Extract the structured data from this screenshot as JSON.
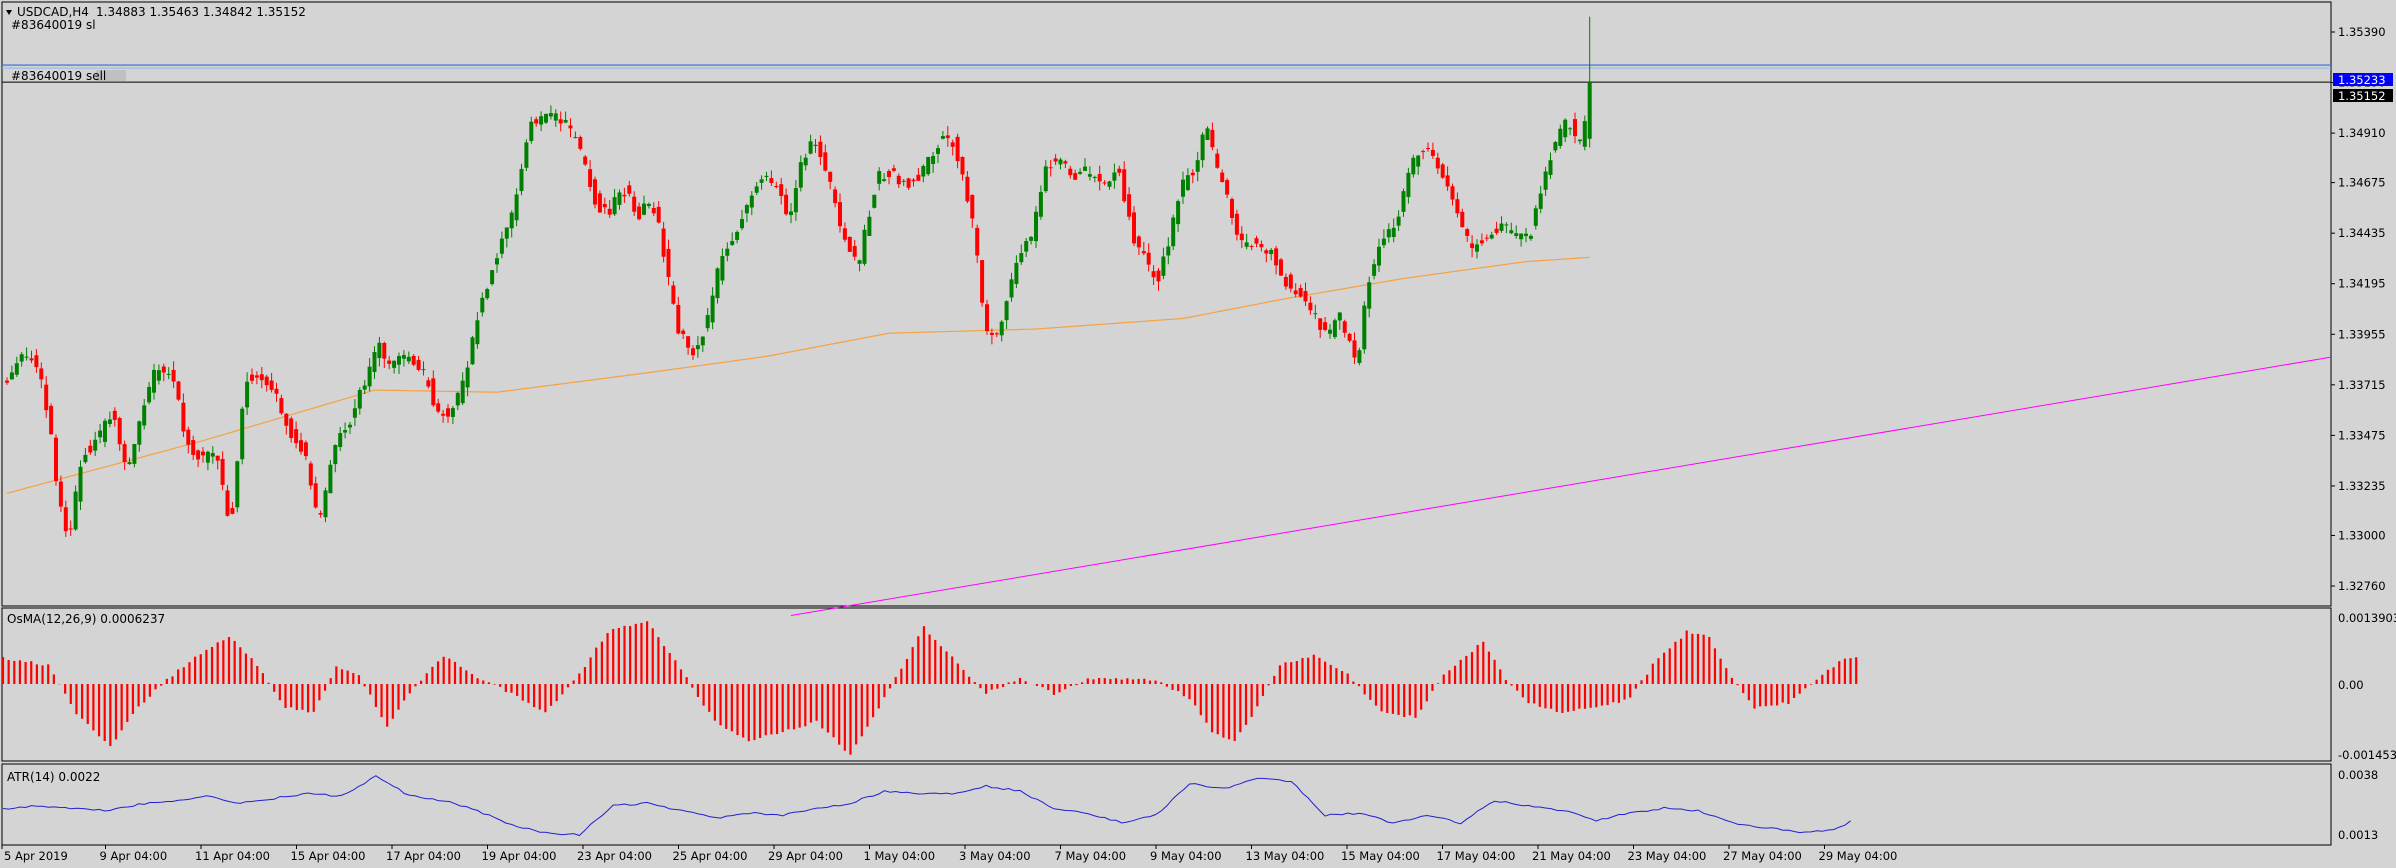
{
  "header": {
    "symbol_label": "USDCAD,H4",
    "ohlc": "1.34883 1.35463 1.34842 1.35152"
  },
  "orders": {
    "sl_label": "#83640019 sl",
    "sell_label": "#83640019 sell"
  },
  "price_tags": {
    "entry": "1.35233",
    "current": "1.35152"
  },
  "indicators": {
    "osma_title": "OsMA(12,26,9) 0.0006237",
    "osma_axis": [
      "0.0013903",
      "0.00",
      "-0.001453"
    ],
    "atr_title": "ATR(14) 0.0022",
    "atr_axis": [
      "0.0038",
      "0.0013"
    ]
  },
  "colors": {
    "bull": "#008000",
    "bear": "#ff0000",
    "ma": "#f5a142",
    "trend": "#ff00ff",
    "sl_line": "#ff0000",
    "entry_line": "#4a7fe0",
    "atr": "#2020d0",
    "osma": "#ff0000"
  },
  "chart_data": {
    "type": "candlestick",
    "price_ticks": [
      "1.35390",
      "1.35150",
      "1.34910",
      "1.34675",
      "1.34435",
      "1.34195",
      "1.33955",
      "1.33715",
      "1.33475",
      "1.33235",
      "1.33000",
      "1.32760"
    ],
    "x_ticks": [
      "5 Apr 2019",
      "9 Apr 04:00",
      "11 Apr 04:00",
      "15 Apr 04:00",
      "17 Apr 04:00",
      "19 Apr 04:00",
      "23 Apr 04:00",
      "25 Apr 04:00",
      "29 Apr 04:00",
      "1 May 04:00",
      "3 May 04:00",
      "7 May 04:00",
      "9 May 04:00",
      "13 May 04:00",
      "15 May 04:00",
      "17 May 04:00",
      "21 May 04:00",
      "23 May 04:00",
      "27 May 04:00",
      "29 May 04:00"
    ],
    "levels": {
      "stop_loss": 1.35545,
      "entry": 1.35233,
      "current": 1.35152
    },
    "price_anchors": [
      [
        0,
        1.3374
      ],
      [
        3,
        1.3385
      ],
      [
        6,
        1.3385
      ],
      [
        9,
        1.3356
      ],
      [
        11,
        1.3315
      ],
      [
        13,
        1.33
      ],
      [
        16,
        1.334
      ],
      [
        19,
        1.3345
      ],
      [
        22,
        1.336
      ],
      [
        25,
        1.3328
      ],
      [
        28,
        1.336
      ],
      [
        31,
        1.338
      ],
      [
        34,
        1.3378
      ],
      [
        37,
        1.3345
      ],
      [
        40,
        1.3335
      ],
      [
        43,
        1.334
      ],
      [
        46,
        1.3303
      ],
      [
        49,
        1.3375
      ],
      [
        52,
        1.3375
      ],
      [
        55,
        1.337
      ],
      [
        58,
        1.335
      ],
      [
        61,
        1.334
      ],
      [
        64,
        1.3305
      ],
      [
        67,
        1.334
      ],
      [
        70,
        1.3353
      ],
      [
        73,
        1.337
      ],
      [
        76,
        1.339
      ],
      [
        79,
        1.338
      ],
      [
        82,
        1.3385
      ],
      [
        84,
        1.338
      ],
      [
        86,
        1.3375
      ],
      [
        88,
        1.336
      ],
      [
        91,
        1.3357
      ],
      [
        94,
        1.3375
      ],
      [
        97,
        1.341
      ],
      [
        100,
        1.343
      ],
      [
        103,
        1.3447
      ],
      [
        105,
        1.347
      ],
      [
        107,
        1.3495
      ],
      [
        109,
        1.3497
      ],
      [
        112,
        1.35
      ],
      [
        115,
        1.3493
      ],
      [
        117,
        1.3484
      ],
      [
        119,
        1.347
      ],
      [
        121,
        1.3455
      ],
      [
        123,
        1.3452
      ],
      [
        125,
        1.346
      ],
      [
        127,
        1.3465
      ],
      [
        129,
        1.345
      ],
      [
        131,
        1.346
      ],
      [
        133,
        1.3452
      ],
      [
        135,
        1.3425
      ],
      [
        137,
        1.34
      ],
      [
        139,
        1.339
      ],
      [
        141,
        1.3385
      ],
      [
        143,
        1.34
      ],
      [
        146,
        1.343
      ],
      [
        149,
        1.3445
      ],
      [
        152,
        1.346
      ],
      [
        155,
        1.347
      ],
      [
        158,
        1.3465
      ],
      [
        160,
        1.345
      ],
      [
        162,
        1.3475
      ],
      [
        165,
        1.349
      ],
      [
        168,
        1.347
      ],
      [
        170,
        1.345
      ],
      [
        172,
        1.344
      ],
      [
        174,
        1.3425
      ],
      [
        176,
        1.345
      ],
      [
        178,
        1.347
      ],
      [
        181,
        1.3472
      ],
      [
        184,
        1.3466
      ],
      [
        187,
        1.3472
      ],
      [
        190,
        1.3485
      ],
      [
        193,
        1.349
      ],
      [
        196,
        1.3465
      ],
      [
        198,
        1.344
      ],
      [
        200,
        1.34
      ],
      [
        202,
        1.339
      ],
      [
        205,
        1.342
      ],
      [
        208,
        1.3435
      ],
      [
        210,
        1.3445
      ],
      [
        212,
        1.3475
      ],
      [
        215,
        1.348
      ],
      [
        218,
        1.347
      ],
      [
        221,
        1.3473
      ],
      [
        224,
        1.3465
      ],
      [
        227,
        1.3475
      ],
      [
        229,
        1.3455
      ],
      [
        231,
        1.3435
      ],
      [
        233,
        1.343
      ],
      [
        235,
        1.342
      ],
      [
        237,
        1.3435
      ],
      [
        240,
        1.3465
      ],
      [
        243,
        1.3475
      ],
      [
        245,
        1.3497
      ],
      [
        247,
        1.3475
      ],
      [
        249,
        1.3465
      ],
      [
        252,
        1.3438
      ],
      [
        255,
        1.344
      ],
      [
        258,
        1.3435
      ],
      [
        261,
        1.3422
      ],
      [
        264,
        1.3415
      ],
      [
        267,
        1.3405
      ],
      [
        270,
        1.3393
      ],
      [
        272,
        1.3405
      ],
      [
        274,
        1.3395
      ],
      [
        276,
        1.338
      ],
      [
        278,
        1.342
      ],
      [
        281,
        1.344
      ],
      [
        284,
        1.345
      ],
      [
        287,
        1.3475
      ],
      [
        290,
        1.3485
      ],
      [
        293,
        1.3472
      ],
      [
        296,
        1.3455
      ],
      [
        299,
        1.3437
      ],
      [
        302,
        1.344
      ],
      [
        305,
        1.3447
      ],
      [
        308,
        1.3442
      ],
      [
        311,
        1.344
      ],
      [
        313,
        1.346
      ],
      [
        316,
        1.3485
      ],
      [
        319,
        1.3497
      ],
      [
        321,
        1.3486
      ],
      [
        322,
        1.3488
      ],
      [
        323,
        1.3515
      ]
    ],
    "ma_anchors": [
      [
        0,
        1.332
      ],
      [
        40,
        1.3345
      ],
      [
        75,
        1.3369
      ],
      [
        100,
        1.3368
      ],
      [
        130,
        1.3377
      ],
      [
        155,
        1.3385
      ],
      [
        180,
        1.3396
      ],
      [
        210,
        1.3398
      ],
      [
        240,
        1.3403
      ],
      [
        260,
        1.3412
      ],
      [
        285,
        1.3422
      ],
      [
        310,
        1.343
      ],
      [
        323,
        1.3432
      ]
    ],
    "trendline": {
      "x0": 160,
      "y0": 1.3262,
      "x1": 406,
      "y1": 1.3358
    },
    "osma_anchors": [
      [
        0,
        0.00055
      ],
      [
        8,
        0.0004
      ],
      [
        13,
        -0.00065
      ],
      [
        19,
        -0.0013
      ],
      [
        24,
        -0.0005
      ],
      [
        29,
        0.0001
      ],
      [
        34,
        0.00055
      ],
      [
        40,
        0.001
      ],
      [
        45,
        0.0004
      ],
      [
        50,
        -0.0005
      ],
      [
        55,
        -0.0006
      ],
      [
        59,
        0.00035
      ],
      [
        63,
        0.0002
      ],
      [
        68,
        -0.0009
      ],
      [
        72,
        -0.0002
      ],
      [
        78,
        0.0006
      ],
      [
        84,
        0.00015
      ],
      [
        90,
        -0.0002
      ],
      [
        96,
        -0.0006
      ],
      [
        102,
        0.0002
      ],
      [
        107,
        0.0011
      ],
      [
        114,
        0.00135
      ],
      [
        120,
        0.0003
      ],
      [
        126,
        -0.0008
      ],
      [
        132,
        -0.0012
      ],
      [
        138,
        -0.001
      ],
      [
        144,
        -0.0008
      ],
      [
        150,
        -0.0015
      ],
      [
        156,
        -0.0003
      ],
      [
        163,
        0.0012
      ],
      [
        170,
        0.0003
      ],
      [
        174,
        -0.0002
      ],
      [
        180,
        0.00012
      ],
      [
        186,
        -0.0002
      ],
      [
        192,
        0.0001
      ],
      [
        198,
        0.0001
      ],
      [
        204,
        0.0001
      ],
      [
        210,
        -0.0003
      ],
      [
        214,
        -0.001
      ],
      [
        218,
        -0.0012
      ],
      [
        222,
        -0.0005
      ],
      [
        226,
        0.0004
      ],
      [
        232,
        0.0006
      ],
      [
        238,
        0.0002
      ],
      [
        244,
        -0.0006
      ],
      [
        250,
        -0.0007
      ],
      [
        255,
        0.0002
      ],
      [
        262,
        0.0009
      ],
      [
        266,
        0.0001
      ],
      [
        270,
        -0.0004
      ],
      [
        276,
        -0.0006
      ],
      [
        282,
        -0.0005
      ],
      [
        288,
        -0.0003
      ],
      [
        292,
        0.0004
      ],
      [
        298,
        0.0011
      ],
      [
        302,
        0.001
      ],
      [
        306,
        0.0001
      ],
      [
        310,
        -0.0005
      ],
      [
        316,
        -0.0004
      ],
      [
        322,
        0.0002
      ],
      [
        326,
        0.00055
      ],
      [
        330,
        0.0006
      ]
    ],
    "atr_anchors": [
      [
        0,
        0.00235
      ],
      [
        6,
        0.0025
      ],
      [
        12,
        0.0024
      ],
      [
        18,
        0.0023
      ],
      [
        24,
        0.00255
      ],
      [
        30,
        0.0027
      ],
      [
        36,
        0.0029
      ],
      [
        42,
        0.0026
      ],
      [
        48,
        0.0028
      ],
      [
        54,
        0.003
      ],
      [
        60,
        0.0029
      ],
      [
        66,
        0.0037
      ],
      [
        72,
        0.0029
      ],
      [
        78,
        0.0027
      ],
      [
        84,
        0.0023
      ],
      [
        90,
        0.0017
      ],
      [
        96,
        0.0014
      ],
      [
        102,
        0.0013
      ],
      [
        108,
        0.0025
      ],
      [
        114,
        0.0026
      ],
      [
        120,
        0.0023
      ],
      [
        126,
        0.002
      ],
      [
        132,
        0.0022
      ],
      [
        138,
        0.0021
      ],
      [
        144,
        0.0024
      ],
      [
        150,
        0.0026
      ],
      [
        156,
        0.0031
      ],
      [
        162,
        0.003
      ],
      [
        168,
        0.003
      ],
      [
        174,
        0.0033
      ],
      [
        180,
        0.0031
      ],
      [
        186,
        0.0024
      ],
      [
        192,
        0.0022
      ],
      [
        198,
        0.0018
      ],
      [
        204,
        0.0021
      ],
      [
        210,
        0.0034
      ],
      [
        216,
        0.0032
      ],
      [
        222,
        0.0036
      ],
      [
        228,
        0.0035
      ],
      [
        234,
        0.0021
      ],
      [
        240,
        0.0022
      ],
      [
        246,
        0.0018
      ],
      [
        252,
        0.0021
      ],
      [
        258,
        0.0018
      ],
      [
        264,
        0.0027
      ],
      [
        270,
        0.0025
      ],
      [
        276,
        0.0023
      ],
      [
        282,
        0.0019
      ],
      [
        288,
        0.0022
      ],
      [
        294,
        0.0024
      ],
      [
        300,
        0.0023
      ],
      [
        306,
        0.0018
      ],
      [
        312,
        0.0016
      ],
      [
        318,
        0.0014
      ],
      [
        324,
        0.0015
      ],
      [
        330,
        0.0022
      ]
    ]
  }
}
